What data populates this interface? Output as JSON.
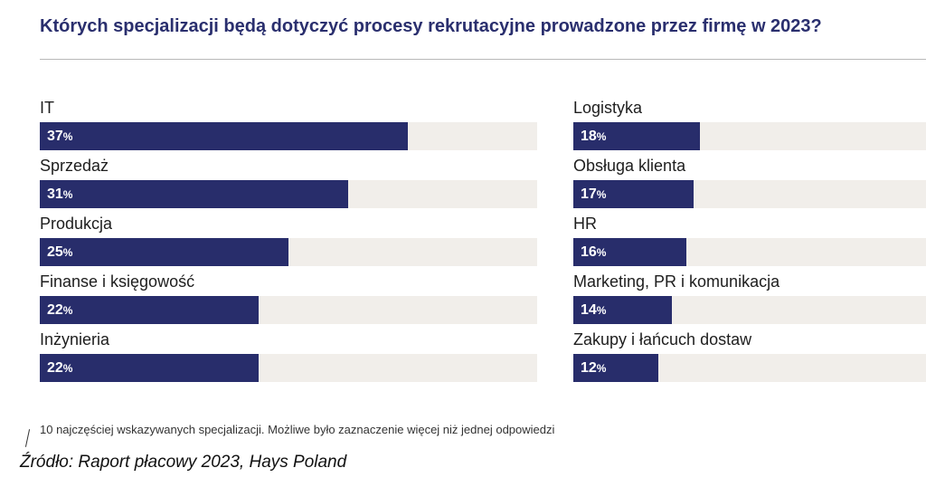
{
  "title": "Których specjalizacji będą dotyczyć procesy rekrutacyjne prowadzone przez firmę w 2023?",
  "colors": {
    "bar": "#282d6b",
    "track": "#f1eeea",
    "title": "#2a2f6e"
  },
  "chart_data": {
    "type": "bar",
    "orientation": "horizontal",
    "unit": "%",
    "xlim": [
      0,
      50
    ],
    "columns": [
      {
        "categories": [
          "IT",
          "Sprzedaż",
          "Produkcja",
          "Finanse i księgowość",
          "Inżynieria"
        ],
        "values": [
          37,
          31,
          25,
          22,
          22
        ]
      },
      {
        "categories": [
          "Logistyka",
          "Obsługa klienta",
          "HR",
          "Marketing, PR i komunikacja",
          "Zakupy i łańcuch dostaw"
        ],
        "values": [
          18,
          17,
          16,
          14,
          12
        ]
      }
    ]
  },
  "footnote": "10 najczęściej wskazywanych specjalizacji. Możliwe było zaznaczenie więcej niż jednej odpowiedzi",
  "source": "Źródło: Raport płacowy 2023, Hays Poland"
}
